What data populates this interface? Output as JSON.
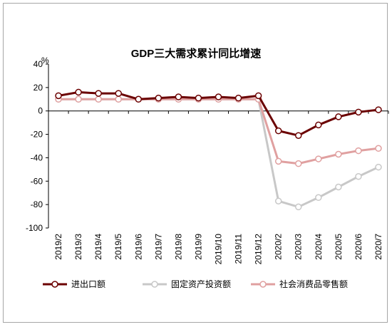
{
  "chart_data": {
    "type": "line",
    "title": "GDP三大需求累计同比增速",
    "ylabel": "%",
    "xlabel": "",
    "ylim": [
      -100,
      40
    ],
    "yticks": [
      40,
      20,
      0,
      -20,
      -40,
      -60,
      -80,
      -100
    ],
    "categories": [
      "2019/2",
      "2019/3",
      "2019/4",
      "2019/5",
      "2019/6",
      "2019/7",
      "2019/8",
      "2019/9",
      "2019/10",
      "2019/11",
      "2019/12",
      "2020/2",
      "2020/3",
      "2020/4",
      "2020/5",
      "2020/6",
      "2020/7"
    ],
    "legend_position": "bottom",
    "series": [
      {
        "name": "进出口额",
        "color": "#6b0000",
        "values": [
          13,
          16,
          15,
          15,
          10,
          11,
          12,
          11,
          12,
          11,
          13,
          -17,
          -21,
          -12,
          -5,
          -1,
          1
        ]
      },
      {
        "name": "固定资产投资额",
        "color": "#c8c8c8",
        "values": [
          10,
          10,
          10,
          10,
          10,
          10,
          10,
          10,
          10,
          10,
          10,
          -77,
          -82,
          -74,
          -65,
          -56,
          -48
        ]
      },
      {
        "name": "社会消费品零售额",
        "color": "#e0a0a0",
        "values": [
          10,
          10,
          10,
          10,
          10,
          10,
          10,
          10,
          10,
          10,
          10,
          -43,
          -45,
          -41,
          -37,
          -34,
          -32
        ]
      }
    ]
  }
}
